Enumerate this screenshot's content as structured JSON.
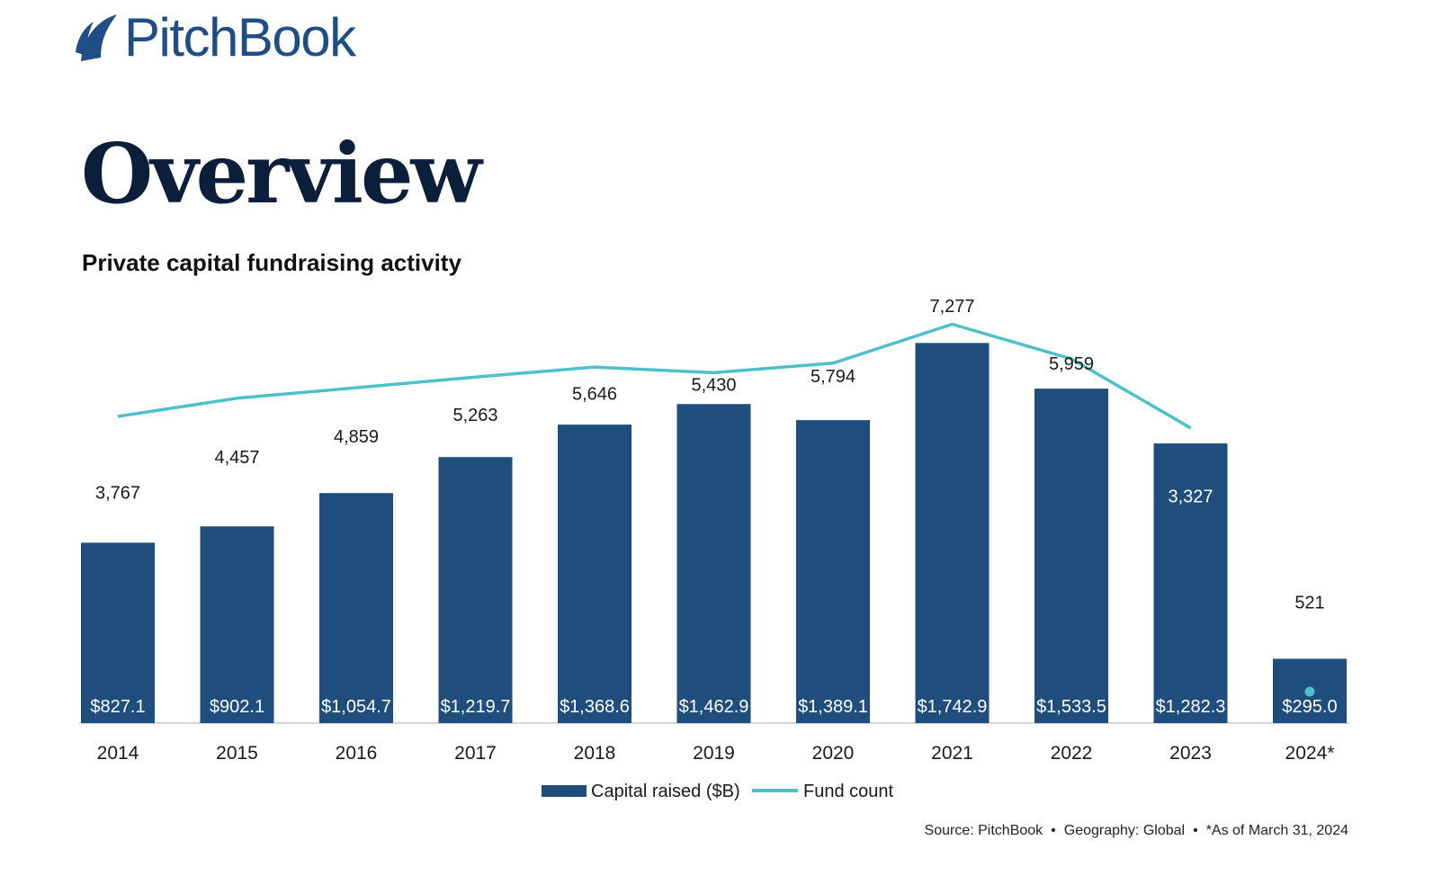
{
  "brand": {
    "name": "PitchBook",
    "logo_icon": "sail-icon",
    "color": "#1f4e86"
  },
  "page_title": "Overview",
  "chart_title": "Private capital fundraising activity",
  "source_note": {
    "source": "Source: PitchBook",
    "geography": "Geography: Global",
    "asof": "*As of March 31, 2024",
    "separator": "•"
  },
  "chart_data": {
    "type": "bar",
    "title": "Private capital fundraising activity",
    "categories": [
      "2014",
      "2015",
      "2016",
      "2017",
      "2018",
      "2019",
      "2020",
      "2021",
      "2022",
      "2023",
      "2024*"
    ],
    "series": [
      {
        "name": "Capital raised ($B)",
        "type": "bar",
        "color": "#1f4e7c",
        "values": [
          827.1,
          902.1,
          1054.7,
          1219.7,
          1368.6,
          1462.9,
          1389.1,
          1742.9,
          1533.5,
          1282.3,
          295.0
        ],
        "labels": [
          "$827.1",
          "$902.1",
          "$1,054.7",
          "$1,219.7",
          "$1,368.6",
          "$1,462.9",
          "$1,389.1",
          "$1,742.9",
          "$1,533.5",
          "$1,282.3",
          "$295.0"
        ]
      },
      {
        "name": "Fund count",
        "type": "line",
        "color": "#4ec0c9",
        "values": [
          3767,
          4457,
          4859,
          5263,
          5646,
          5430,
          5794,
          7277,
          5959,
          3327,
          521
        ],
        "labels": [
          "3,767",
          "4,457",
          "4,859",
          "5,263",
          "5,646",
          "5,430",
          "5,794",
          "7,277",
          "5,959",
          "3,327",
          "521"
        ]
      }
    ],
    "legend": "bottom-center",
    "grid": false
  }
}
